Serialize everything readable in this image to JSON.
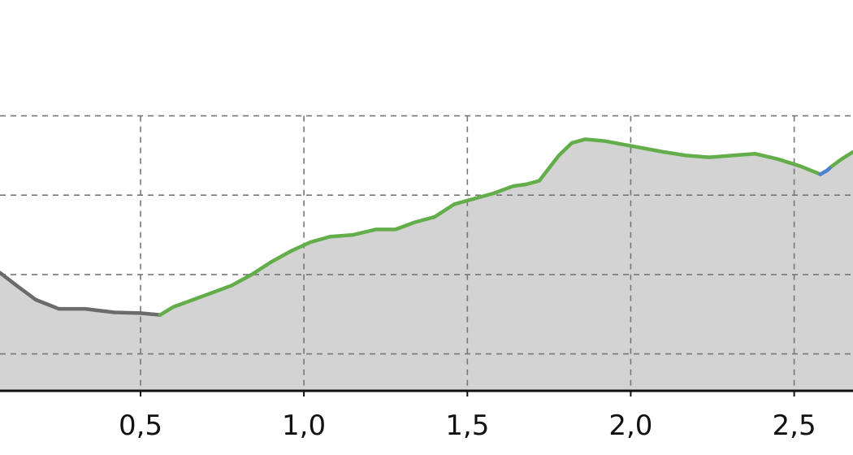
{
  "chart_data": {
    "type": "area",
    "title": "",
    "xlabel": "",
    "ylabel": "",
    "xlim": [
      0.07,
      2.68
    ],
    "ylim": [
      0,
      100
    ],
    "x_ticks": [
      {
        "value": 0.5,
        "label": "0,5"
      },
      {
        "value": 1.0,
        "label": "1,0"
      },
      {
        "value": 1.5,
        "label": "1,5"
      },
      {
        "value": 2.0,
        "label": "2,0"
      },
      {
        "value": 2.5,
        "label": "2,5"
      }
    ],
    "y_grid": [
      10,
      32,
      54,
      76
    ],
    "grid": true,
    "series": [
      {
        "color": "#6b6b6b",
        "x": [
          0.07,
          0.12,
          0.18,
          0.25,
          0.33,
          0.42,
          0.5,
          0.56
        ],
        "y": [
          32.5,
          29,
          25,
          22.5,
          22.5,
          21.5,
          21.3,
          20.8
        ]
      },
      {
        "color": "#64ad4b",
        "x": [
          0.56,
          0.6,
          0.66,
          0.72,
          0.78,
          0.84,
          0.9,
          0.96,
          1.02,
          1.08,
          1.15,
          1.22,
          1.28,
          1.34,
          1.4,
          1.46,
          1.52,
          1.58,
          1.64,
          1.68,
          1.72,
          1.78,
          1.82,
          1.86,
          1.92,
          1.98,
          2.04,
          2.1,
          2.17,
          2.24,
          2.31,
          2.38,
          2.45,
          2.52,
          2.58
        ],
        "y": [
          20.8,
          23,
          25,
          27,
          29,
          32,
          35.5,
          38.5,
          41,
          42.5,
          43,
          44.5,
          44.5,
          46.5,
          48,
          51.5,
          53,
          54.5,
          56.5,
          57,
          58,
          65,
          68.5,
          69.5,
          69,
          68,
          67,
          66,
          65,
          64.5,
          65,
          65.5,
          64,
          62,
          59.8
        ]
      },
      {
        "color": "#4f7fcf",
        "x": [
          2.58,
          2.6,
          2.615
        ],
        "y": [
          59.8,
          60.8,
          62
        ]
      },
      {
        "color": "#64ad4b",
        "x": [
          2.615,
          2.645,
          2.68
        ],
        "y": [
          62,
          64,
          66
        ]
      }
    ]
  },
  "colors": {
    "fill": "#d3d3d3",
    "grid": "#777777",
    "axis": "#111111"
  }
}
